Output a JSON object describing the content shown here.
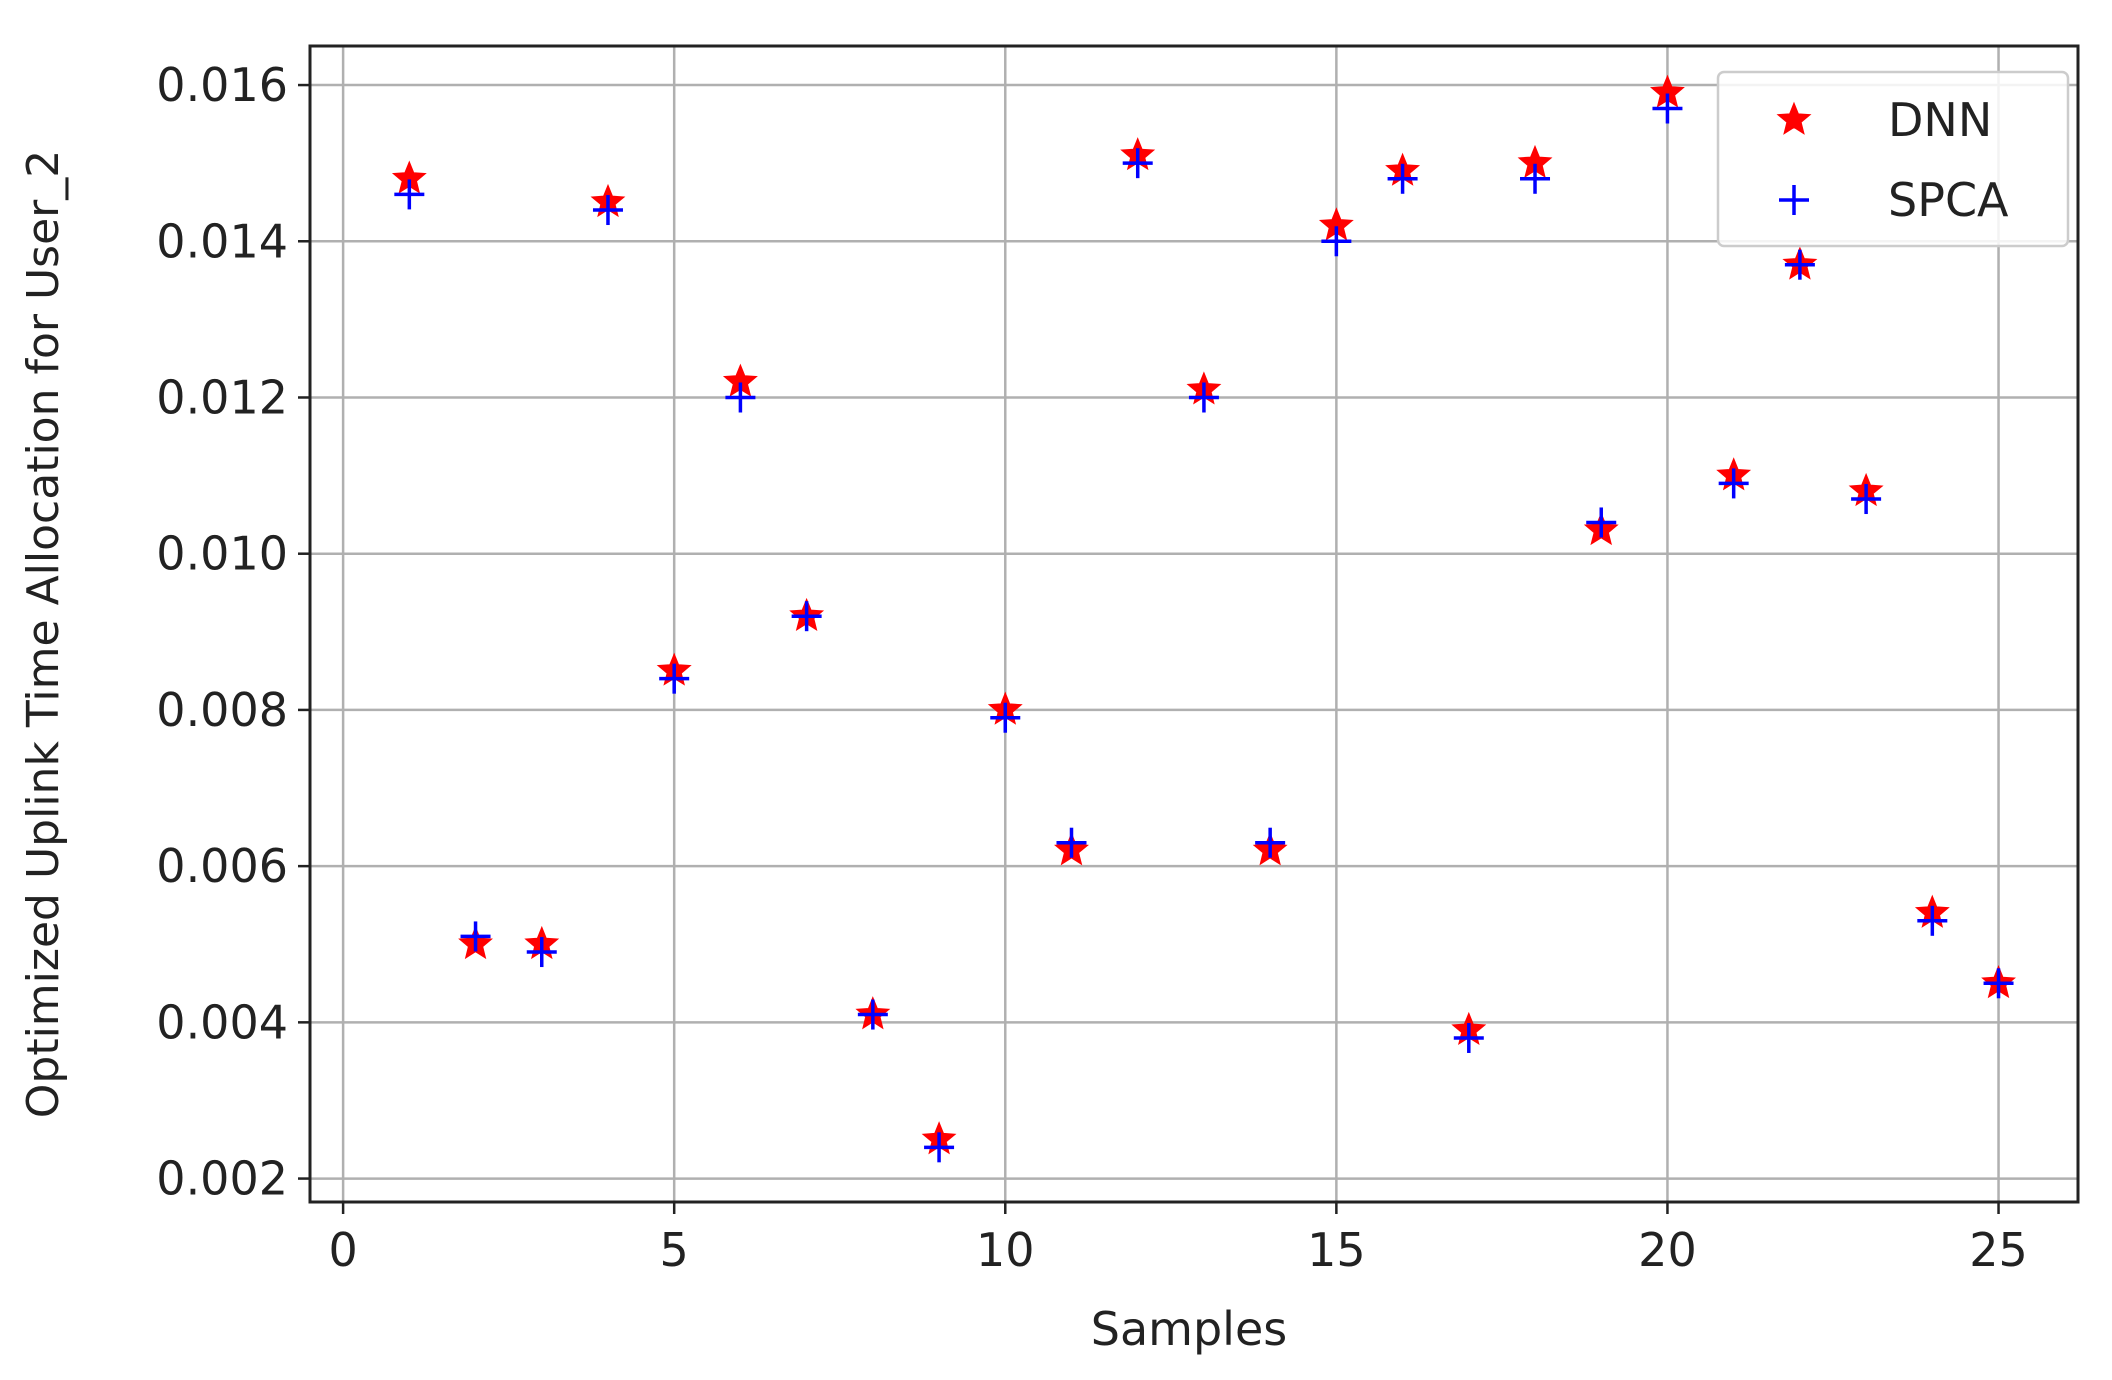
{
  "chart_data": {
    "type": "scatter",
    "title": "",
    "xlabel": "Samples",
    "ylabel": "Optimized Uplink Time Allocation for User_2",
    "xlim": [
      -0.5,
      26.2
    ],
    "ylim": [
      0.0017,
      0.0165
    ],
    "xticks": [
      0,
      5,
      10,
      15,
      20,
      25
    ],
    "xtick_labels": [
      "0",
      "5",
      "10",
      "15",
      "20",
      "25"
    ],
    "yticks": [
      0.002,
      0.004,
      0.006,
      0.008,
      0.01,
      0.012,
      0.014,
      0.016
    ],
    "ytick_labels": [
      "0.002",
      "0.004",
      "0.006",
      "0.008",
      "0.010",
      "0.012",
      "0.014",
      "0.016"
    ],
    "grid": true,
    "legend_position": "top-right",
    "x": [
      1,
      2,
      3,
      4,
      5,
      6,
      7,
      8,
      9,
      10,
      11,
      12,
      13,
      14,
      15,
      16,
      17,
      18,
      19,
      20,
      21,
      22,
      23,
      24,
      25
    ],
    "series": [
      {
        "name": "DNN",
        "marker": "star",
        "color": "#ff0000",
        "values": [
          0.0148,
          0.005,
          0.005,
          0.0145,
          0.0085,
          0.0122,
          0.0092,
          0.0041,
          0.0025,
          0.008,
          0.0062,
          0.0151,
          0.0121,
          0.0062,
          0.0142,
          0.0149,
          0.0039,
          0.015,
          0.0103,
          0.0159,
          0.011,
          0.0137,
          0.0108,
          0.0054,
          0.0045
        ]
      },
      {
        "name": "SPCA",
        "marker": "plus",
        "color": "#0000ff",
        "values": [
          0.0146,
          0.0051,
          0.0049,
          0.0144,
          0.0084,
          0.012,
          0.0092,
          0.0041,
          0.0024,
          0.0079,
          0.0063,
          0.015,
          0.012,
          0.0063,
          0.014,
          0.0148,
          0.0038,
          0.0148,
          0.0104,
          0.0157,
          0.0109,
          0.0137,
          0.0107,
          0.0053,
          0.0045
        ]
      }
    ]
  }
}
